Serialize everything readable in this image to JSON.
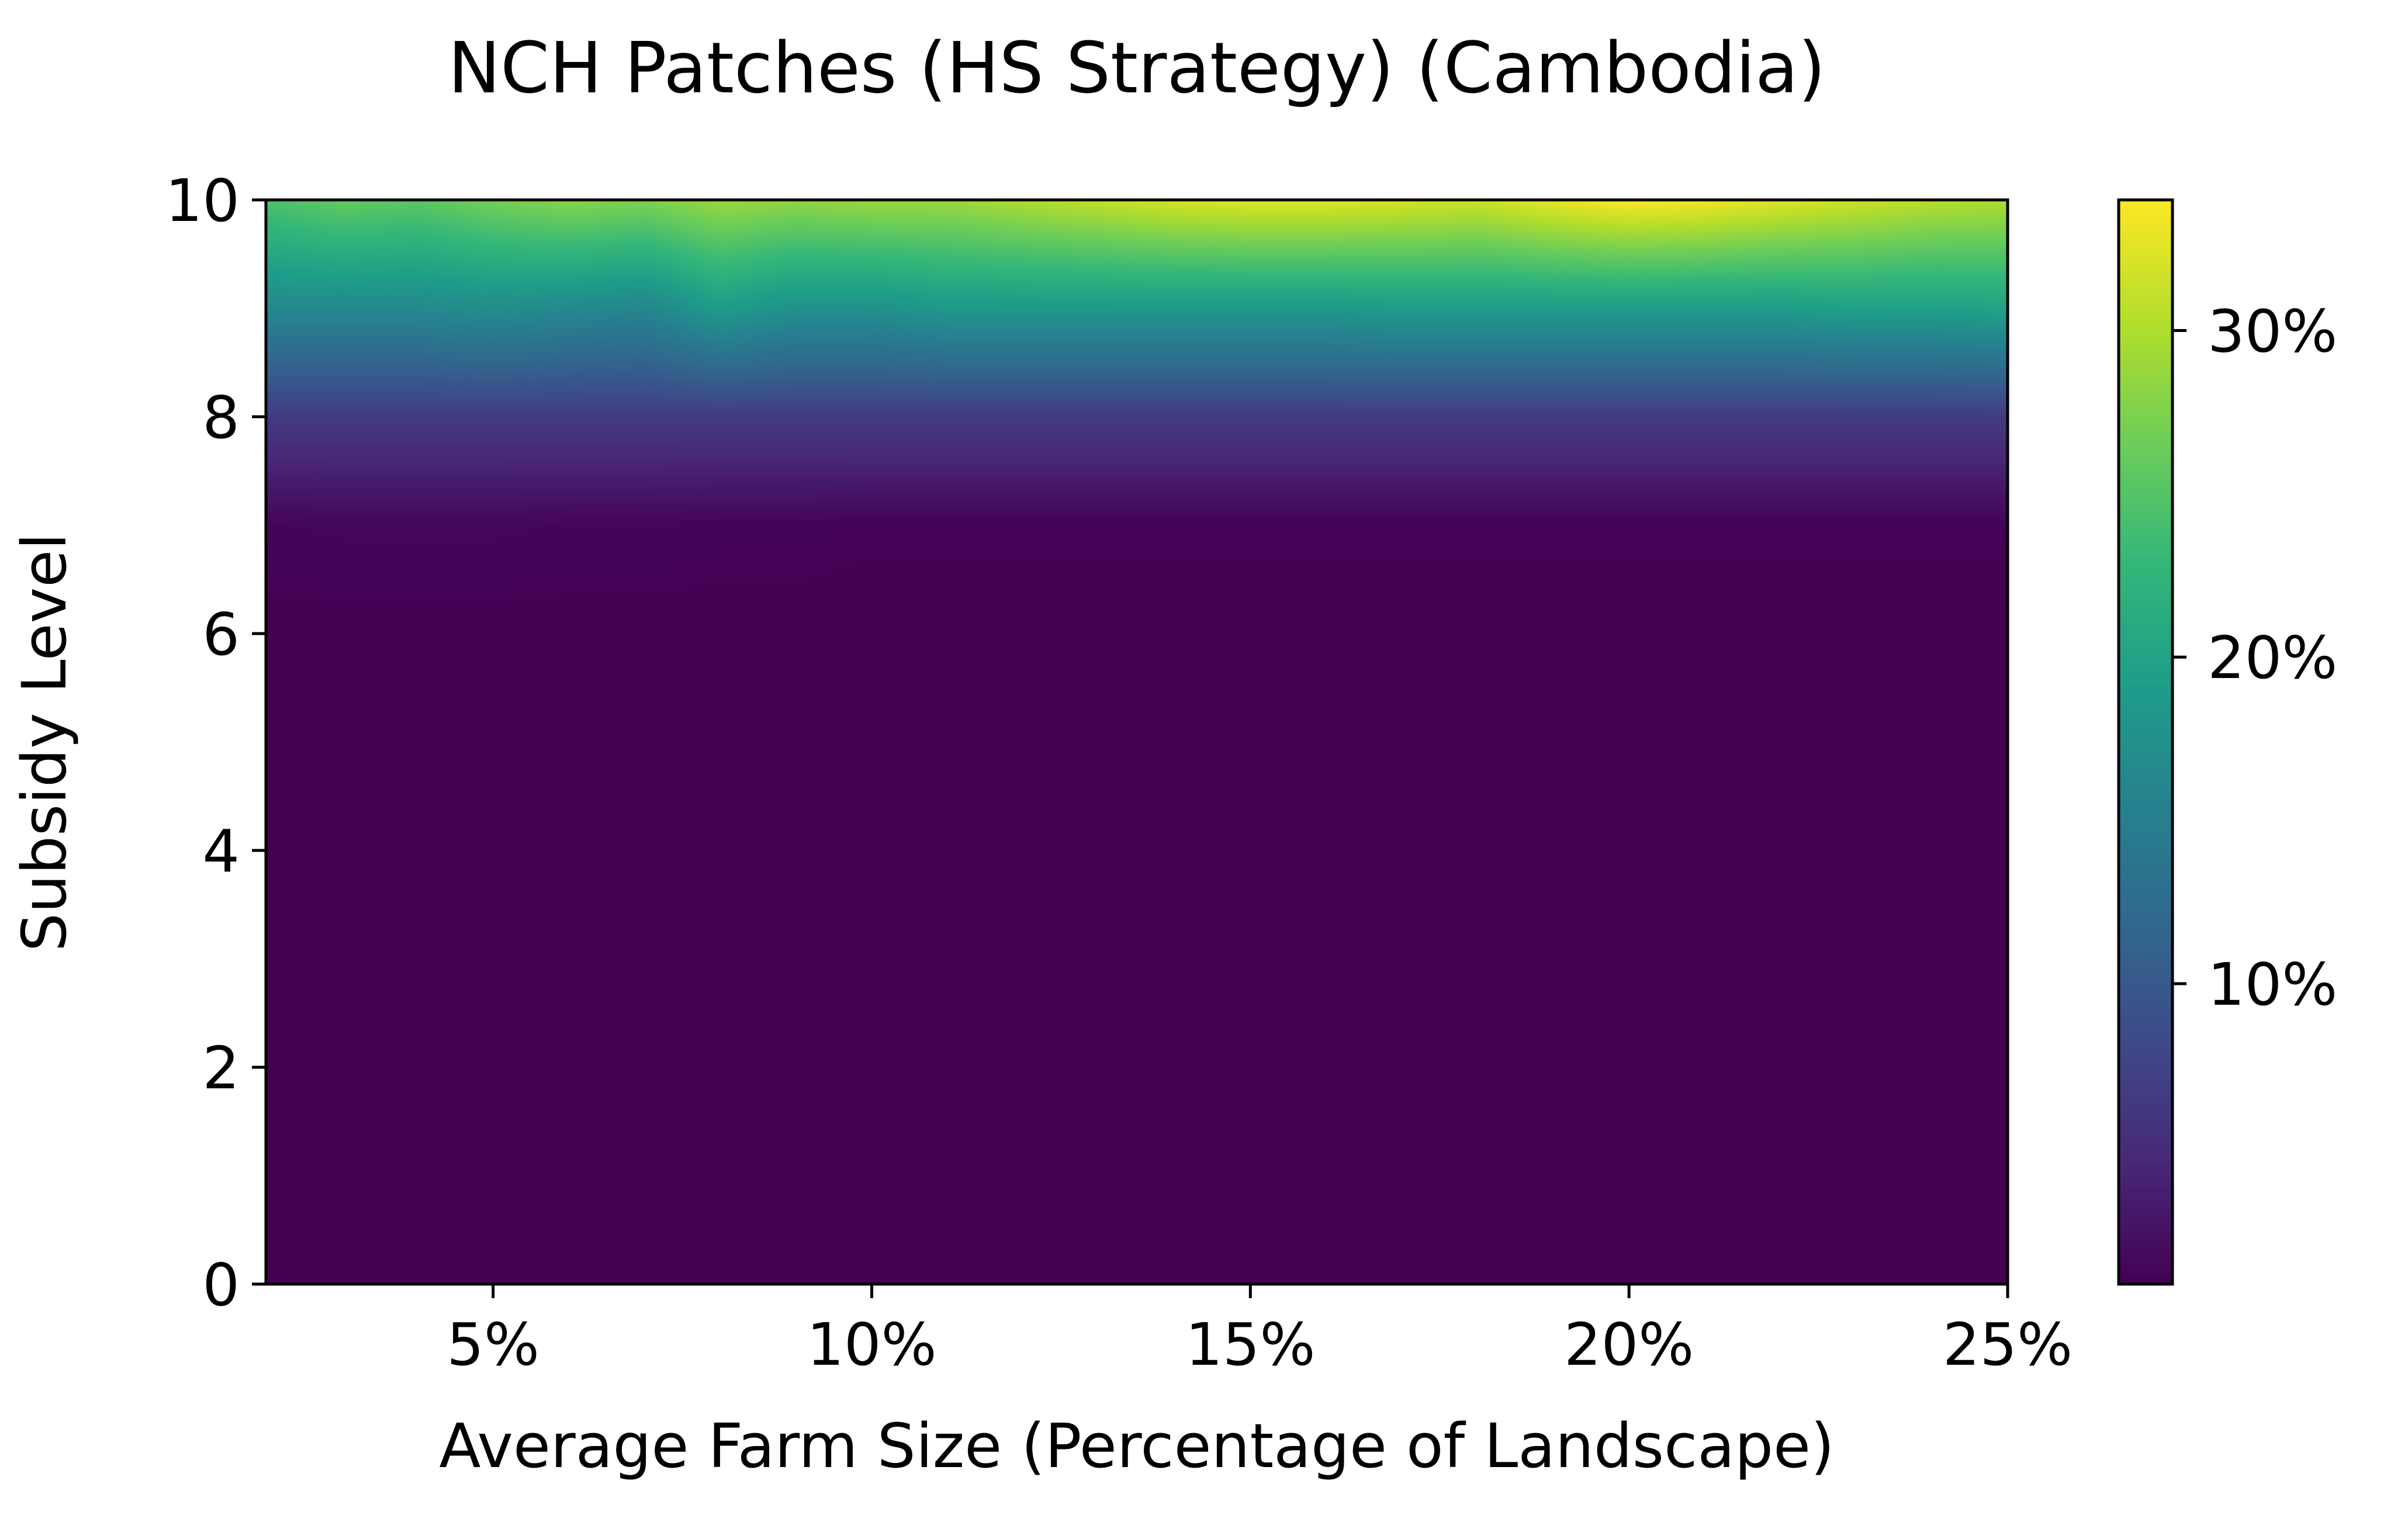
{
  "chart_data": {
    "type": "heatmap",
    "title": "NCH Patches (HS Strategy) (Cambodia)",
    "xlabel": "Average Farm Size (Percentage of Landscape)",
    "ylabel": "Subsidy Level",
    "xlim": [
      2,
      25
    ],
    "ylim": [
      0,
      10
    ],
    "x_ticks": [
      5,
      10,
      15,
      20,
      25
    ],
    "x_tick_labels": [
      "5%",
      "10%",
      "15%",
      "20%",
      "25%"
    ],
    "y_ticks": [
      0,
      2,
      4,
      6,
      8,
      10
    ],
    "y_tick_labels": [
      "0",
      "2",
      "4",
      "6",
      "8",
      "10"
    ],
    "colormap": "viridis",
    "color_range": [
      0.8,
      34
    ],
    "colorbar_ticks": [
      10,
      20,
      30
    ],
    "colorbar_tick_labels": [
      "10%",
      "20%",
      "30%"
    ],
    "interpolation": "bilinear",
    "x": [
      2,
      3,
      4,
      5,
      6,
      7,
      8,
      9,
      10,
      11,
      12,
      13,
      14,
      15,
      16,
      17,
      18,
      19,
      20,
      21,
      22,
      23,
      24,
      25
    ],
    "y": [
      0,
      1,
      2,
      3,
      4,
      5,
      6,
      7,
      8,
      9,
      10
    ],
    "values": [
      [
        0.8,
        0.8,
        0.8,
        0.8,
        0.8,
        0.8,
        0.8,
        0.8,
        0.8,
        0.8,
        0.8,
        0.8,
        0.8,
        0.8,
        0.8,
        0.8,
        0.8,
        0.8,
        0.8,
        0.8,
        0.8,
        0.8,
        0.8,
        0.8
      ],
      [
        0.8,
        0.8,
        0.8,
        0.8,
        0.8,
        0.8,
        0.8,
        0.8,
        0.8,
        0.8,
        0.8,
        0.8,
        0.8,
        0.8,
        0.8,
        0.8,
        0.8,
        0.8,
        0.8,
        0.8,
        0.8,
        0.8,
        0.8,
        0.8
      ],
      [
        0.8,
        0.8,
        0.8,
        0.8,
        0.8,
        0.8,
        0.8,
        0.8,
        0.8,
        0.8,
        0.8,
        0.8,
        0.8,
        0.8,
        0.8,
        0.8,
        0.8,
        0.8,
        0.8,
        0.8,
        0.8,
        0.8,
        0.8,
        0.8
      ],
      [
        0.8,
        0.8,
        0.8,
        0.8,
        0.8,
        0.8,
        0.8,
        0.8,
        0.8,
        0.8,
        0.8,
        0.8,
        0.8,
        0.8,
        0.8,
        0.8,
        0.8,
        0.8,
        0.8,
        0.8,
        0.8,
        0.8,
        0.8,
        0.8
      ],
      [
        0.8,
        0.8,
        0.8,
        0.8,
        0.8,
        0.8,
        0.8,
        0.8,
        0.8,
        0.8,
        0.8,
        0.8,
        0.8,
        0.8,
        0.8,
        0.8,
        0.8,
        0.8,
        0.8,
        0.8,
        0.8,
        0.8,
        0.8,
        0.8
      ],
      [
        0.8,
        0.8,
        0.8,
        0.8,
        0.8,
        0.8,
        0.8,
        0.8,
        0.8,
        0.8,
        0.8,
        0.8,
        0.8,
        0.8,
        0.8,
        0.8,
        0.8,
        0.8,
        0.8,
        0.8,
        0.8,
        0.8,
        0.8,
        0.8
      ],
      [
        0.8,
        0.8,
        0.8,
        0.8,
        0.8,
        0.8,
        0.8,
        0.8,
        0.8,
        0.8,
        0.8,
        0.8,
        0.8,
        0.8,
        0.8,
        0.8,
        0.8,
        0.8,
        0.8,
        0.8,
        0.8,
        0.8,
        0.8,
        0.8
      ],
      [
        1.2,
        1.3,
        1.3,
        1.3,
        1.2,
        1.2,
        1.1,
        1.1,
        1.0,
        1.0,
        1.0,
        1.0,
        1.0,
        1.0,
        1.0,
        1.0,
        1.0,
        1.0,
        1.0,
        1.0,
        1.0,
        1.0,
        1.0,
        1.0
      ],
      [
        6.5,
        6.5,
        6.5,
        6.5,
        6.5,
        6.5,
        6.5,
        6.5,
        6.5,
        6.5,
        6.5,
        6.5,
        6.5,
        6.5,
        6.5,
        6.5,
        6.5,
        6.5,
        6.5,
        6.5,
        6.5,
        6.5,
        6.5,
        6.5
      ],
      [
        16.5,
        16.5,
        16.5,
        17,
        16.5,
        16,
        19,
        17.5,
        17.5,
        18.5,
        18.5,
        18.5,
        18.5,
        18.5,
        18.5,
        19,
        19,
        19,
        19,
        19,
        19,
        19.5,
        19.5,
        20
      ],
      [
        24.5,
        26,
        25.5,
        27,
        28,
        27.5,
        29,
        28.5,
        29,
        29,
        30,
        31,
        32,
        32.5,
        32.5,
        32,
        31.5,
        33,
        34,
        33.5,
        32.5,
        31.5,
        30.5,
        30
      ]
    ]
  }
}
